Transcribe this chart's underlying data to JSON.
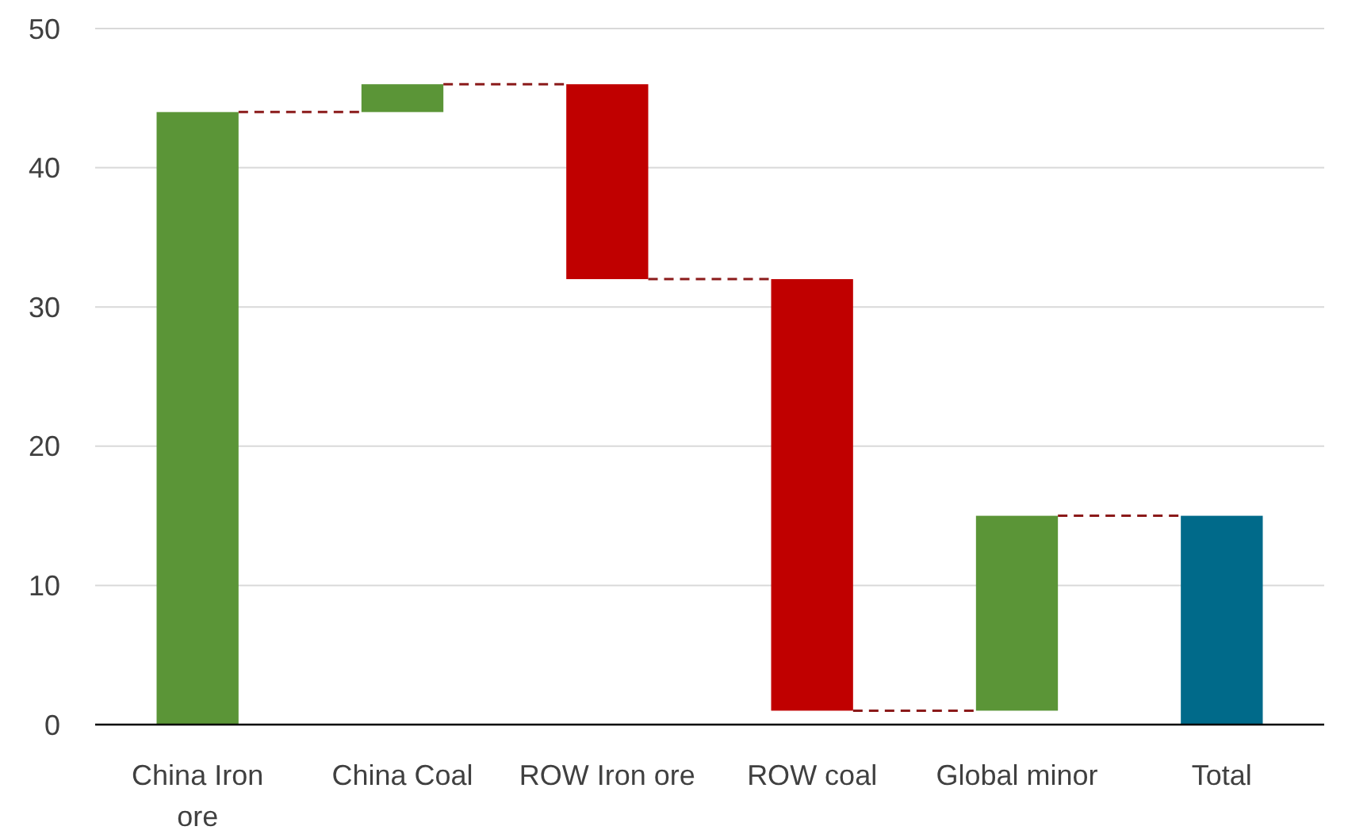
{
  "chart_data": {
    "type": "bar",
    "categories": [
      "China Iron ore",
      "China Coal",
      "ROW Iron ore",
      "ROW coal",
      "Global minor",
      "Total"
    ],
    "values": [
      44,
      2,
      14,
      31,
      14,
      15
    ],
    "base": [
      0,
      44,
      32,
      1,
      1,
      0
    ],
    "colors": [
      "#5b9537",
      "#5b9537",
      "#c00000",
      "#c00000",
      "#5b9537",
      "#006a8a"
    ],
    "ylim": [
      0,
      50
    ],
    "yticks": [
      0,
      10,
      20,
      30,
      40,
      50
    ],
    "grid": "y"
  }
}
